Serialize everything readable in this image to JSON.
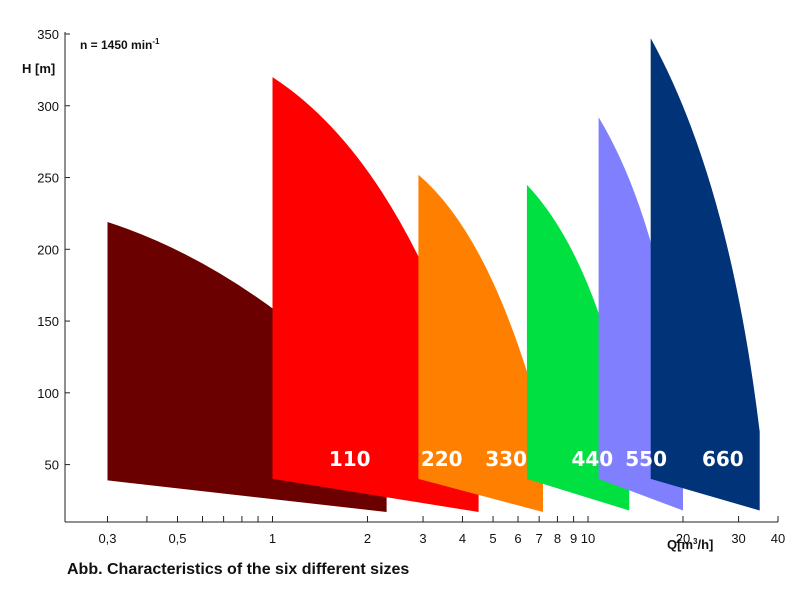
{
  "chart_data": {
    "type": "area",
    "caption": "Abb. Characteristics of the six different sizes",
    "annotation": {
      "text": "n = 1450 min",
      "superscript": "-1"
    },
    "ylabel": "H [m]",
    "xlabel": {
      "main": "Q[m",
      "sup": "3",
      "end": "/h]"
    },
    "xscale": "log",
    "xlim": [
      0.22,
      40
    ],
    "ylim": [
      10,
      350
    ],
    "grid": false,
    "yticks": [
      {
        "value": 50,
        "label": "50"
      },
      {
        "value": 100,
        "label": "100"
      },
      {
        "value": 150,
        "label": "150"
      },
      {
        "value": 200,
        "label": "200"
      },
      {
        "value": 250,
        "label": "250"
      },
      {
        "value": 300,
        "label": "300"
      },
      {
        "value": 350,
        "label": "350"
      }
    ],
    "xticks_labeled": [
      {
        "value": 0.3,
        "label": "0,3"
      },
      {
        "value": 0.5,
        "label": "0,5"
      },
      {
        "value": 1,
        "label": "1"
      },
      {
        "value": 2,
        "label": "2"
      },
      {
        "value": 3,
        "label": "3"
      },
      {
        "value": 4,
        "label": "4"
      },
      {
        "value": 5,
        "label": "5"
      },
      {
        "value": 6,
        "label": "6"
      },
      {
        "value": 7,
        "label": "7"
      },
      {
        "value": 8,
        "label": "8"
      },
      {
        "value": 9,
        "label": "9"
      },
      {
        "value": 10,
        "label": "10"
      },
      {
        "value": 20,
        "label": "20"
      },
      {
        "value": 30,
        "label": "30"
      },
      {
        "value": 40,
        "label": "40"
      }
    ],
    "xticks_minor": [
      0.4,
      0.6,
      0.7,
      0.8,
      0.9
    ],
    "series": [
      {
        "name": "110",
        "color": "#6b0000",
        "q_min": 0.3,
        "q_max": 2.3,
        "h_top_left": 219,
        "h_top_right": 88,
        "top_curve_ctrl": [
          0.87,
          186
        ],
        "h_bottom_left": 39,
        "h_bottom_right": 17
      },
      {
        "name": "220",
        "color": "#ff0000",
        "q_min": 1.0,
        "q_max": 4.5,
        "h_top_left": 320,
        "h_top_right": 88,
        "top_curve_ctrl": [
          2.55,
          262
        ],
        "h_bottom_left": 40,
        "h_bottom_right": 17
      },
      {
        "name": "330",
        "color": "#ff8000",
        "q_min": 2.9,
        "q_max": 7.2,
        "h_top_left": 252,
        "h_top_right": 76,
        "top_curve_ctrl": [
          5.0,
          208
        ],
        "h_bottom_left": 40,
        "h_bottom_right": 17
      },
      {
        "name": "440",
        "color": "#00e040",
        "q_min": 6.4,
        "q_max": 13.5,
        "h_top_left": 245,
        "h_top_right": 76,
        "top_curve_ctrl": [
          10.5,
          195
        ],
        "h_bottom_left": 40,
        "h_bottom_right": 18
      },
      {
        "name": "550",
        "color": "#8080ff",
        "q_min": 10.8,
        "q_max": 20,
        "h_top_left": 292,
        "h_top_right": 88,
        "top_curve_ctrl": [
          17,
          220
        ],
        "h_bottom_left": 40,
        "h_bottom_right": 18
      },
      {
        "name": "660",
        "color": "#003377",
        "q_min": 15.8,
        "q_max": 35,
        "h_top_left": 347,
        "h_top_right": 73,
        "top_curve_ctrl": [
          28,
          248
        ],
        "h_bottom_left": 40,
        "h_bottom_right": 18
      }
    ]
  }
}
